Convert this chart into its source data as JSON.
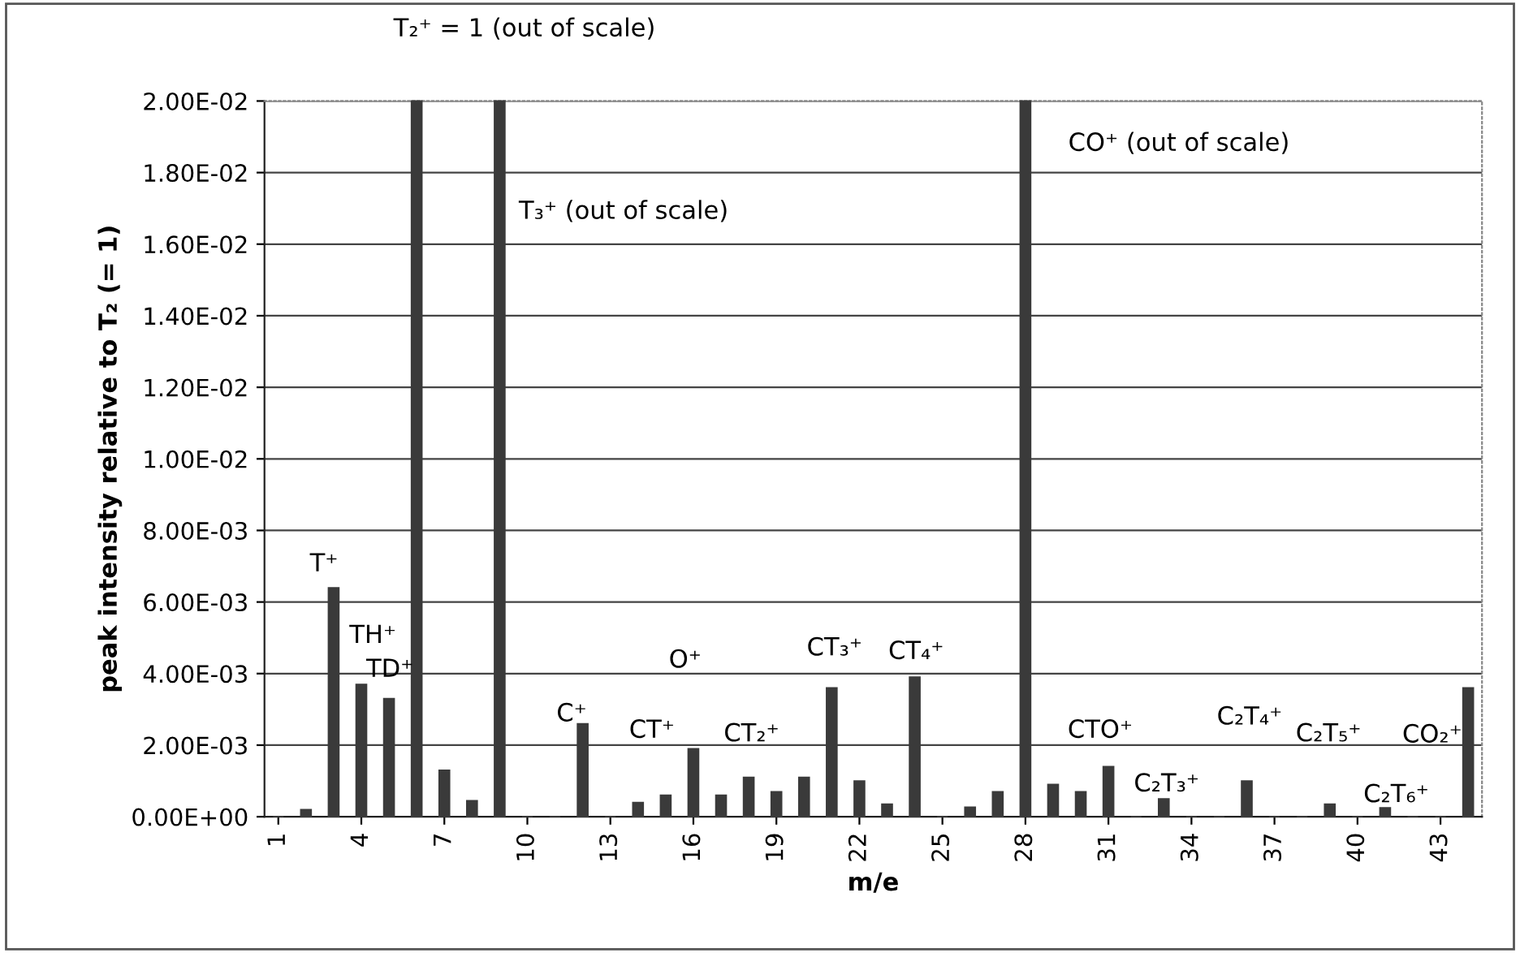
{
  "chart_data": {
    "type": "bar",
    "xlabel": "m/e",
    "ylabel": "peak intensity relative to T₂ (= 1)",
    "x": [
      1,
      2,
      3,
      4,
      5,
      6,
      7,
      8,
      9,
      10,
      11,
      12,
      13,
      14,
      15,
      16,
      17,
      18,
      19,
      20,
      21,
      22,
      23,
      24,
      25,
      26,
      27,
      28,
      29,
      30,
      31,
      32,
      33,
      34,
      35,
      36,
      37,
      38,
      39,
      40,
      41,
      42,
      43,
      44
    ],
    "values": [
      0,
      0.0002,
      0.0064,
      0.0037,
      0.0033,
      0.02,
      0.0013,
      0.00045,
      0.02,
      0,
      0,
      0.0026,
      0,
      0.0004,
      0.0006,
      0.0019,
      0.0006,
      0.0011,
      0.0007,
      0.0011,
      0.0036,
      0.001,
      0.00035,
      0.0039,
      0,
      0.00027,
      0.0007,
      0.02,
      0.0009,
      0.0007,
      0.0014,
      0,
      0.0005,
      0,
      0,
      0.001,
      0,
      0,
      0.00035,
      0,
      0.00025,
      0,
      0,
      0.0036
    ],
    "color": "#3a3a3a",
    "xlim": [
      0.5,
      44.5
    ],
    "xticks": [
      1,
      4,
      7,
      10,
      13,
      16,
      19,
      22,
      25,
      28,
      31,
      34,
      37,
      40,
      43
    ],
    "ylim": [
      0,
      0.02
    ],
    "yticks": [
      {
        "value": 0,
        "label": "0.00E+00"
      },
      {
        "value": 0.002,
        "label": "2.00E-03"
      },
      {
        "value": 0.004,
        "label": "4.00E-03"
      },
      {
        "value": 0.006,
        "label": "6.00E-03"
      },
      {
        "value": 0.008,
        "label": "8.00E-03"
      },
      {
        "value": 0.01,
        "label": "1.00E-02"
      },
      {
        "value": 0.012,
        "label": "1.20E-02"
      },
      {
        "value": 0.014,
        "label": "1.40E-02"
      },
      {
        "value": 0.016,
        "label": "1.60E-02"
      },
      {
        "value": 0.018,
        "label": "1.80E-02"
      },
      {
        "value": 0.02,
        "label": "2.00E-02"
      }
    ],
    "grid": "y",
    "annotations": [
      "T⁺",
      "TH⁺",
      "TD⁺",
      "C⁺",
      "CT⁺",
      "O⁺",
      "CT₂⁺",
      "CT₃⁺",
      "CT₄⁺",
      "CTO⁺",
      "C₂T₃⁺",
      "C₂T₄⁺",
      "C₂T₅⁺",
      "C₂T₆⁺",
      "CO₂⁺",
      "T₂⁺ = 1 (out of scale)",
      "T₃⁺ (out of scale)",
      "CO⁺ (out of scale)"
    ]
  }
}
